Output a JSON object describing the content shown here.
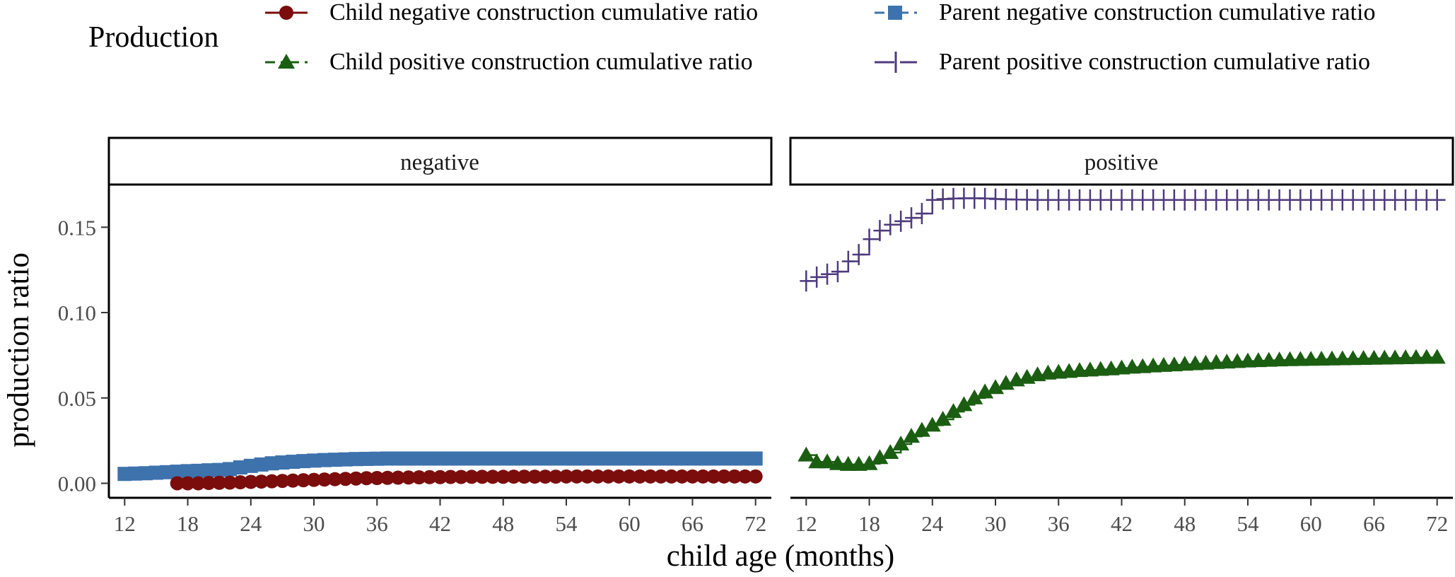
{
  "legend": {
    "title": "Production",
    "items": [
      {
        "label": "Child negative construction cumulative ratio",
        "color": "#7b0d0d",
        "marker": "circle"
      },
      {
        "label": "Child positive construction cumulative ratio",
        "color": "#1b5e12",
        "marker": "triangle"
      },
      {
        "label": "Parent negative construction cumulative ratio",
        "color": "#3d72ad",
        "marker": "square"
      },
      {
        "label": "Parent positive construction cumulative ratio",
        "color": "#4e3a7d",
        "marker": "plus"
      }
    ]
  },
  "axes": {
    "xlabel": "child age (months)",
    "ylabel": "production ratio",
    "xticks": [
      12,
      18,
      24,
      30,
      36,
      42,
      48,
      54,
      60,
      66,
      72
    ],
    "yticks": [
      "0.00",
      "0.05",
      "0.10",
      "0.15"
    ]
  },
  "chart_data": [
    {
      "type": "line",
      "facet": "negative",
      "xlim": [
        10.5,
        73.5
      ],
      "ylim": [
        -0.0085,
        0.175
      ],
      "series": [
        {
          "name": "Parent negative construction cumulative ratio",
          "color": "#3d72ad",
          "marker": "square",
          "x": [
            12,
            13,
            14,
            15,
            16,
            17,
            18,
            19,
            20,
            21,
            22,
            23,
            24,
            25,
            26,
            27,
            28,
            29,
            30,
            31,
            32,
            33,
            34,
            35,
            36,
            37,
            38,
            39,
            40,
            41,
            42,
            43,
            44,
            45,
            46,
            47,
            48,
            49,
            50,
            51,
            52,
            53,
            54,
            55,
            56,
            57,
            58,
            59,
            60,
            61,
            62,
            63,
            64,
            65,
            66,
            67,
            68,
            69,
            70,
            71,
            72
          ],
          "y": [
            0.0055,
            0.0057,
            0.0059,
            0.0062,
            0.0065,
            0.0068,
            0.0071,
            0.0073,
            0.0076,
            0.0078,
            0.0083,
            0.0093,
            0.0102,
            0.011,
            0.0117,
            0.0122,
            0.0126,
            0.013,
            0.0133,
            0.0136,
            0.0138,
            0.014,
            0.0142,
            0.0143,
            0.0144,
            0.0145,
            0.0145,
            0.0145,
            0.0145,
            0.0145,
            0.0145,
            0.0145,
            0.0145,
            0.0145,
            0.0145,
            0.0145,
            0.0145,
            0.0145,
            0.0145,
            0.0145,
            0.0145,
            0.0145,
            0.0145,
            0.0145,
            0.0145,
            0.0145,
            0.0145,
            0.0145,
            0.0145,
            0.0145,
            0.0145,
            0.0145,
            0.0145,
            0.0145,
            0.0145,
            0.0145,
            0.0145,
            0.0145,
            0.0145,
            0.0145,
            0.0145
          ]
        },
        {
          "name": "Child negative construction cumulative ratio",
          "color": "#7b0d0d",
          "marker": "circle",
          "x": [
            17,
            18,
            19,
            20,
            21,
            22,
            23,
            24,
            25,
            26,
            27,
            28,
            29,
            30,
            31,
            32,
            33,
            34,
            35,
            36,
            37,
            38,
            39,
            40,
            41,
            42,
            43,
            44,
            45,
            46,
            47,
            48,
            49,
            50,
            51,
            52,
            53,
            54,
            55,
            56,
            57,
            58,
            59,
            60,
            61,
            62,
            63,
            64,
            65,
            66,
            67,
            68,
            69,
            70,
            71,
            72
          ],
          "y": [
            0.0,
            0.0,
            0.0,
            0.0002,
            0.0003,
            0.0004,
            0.0006,
            0.0008,
            0.001,
            0.0012,
            0.0014,
            0.0016,
            0.0018,
            0.002,
            0.0022,
            0.0024,
            0.0026,
            0.0028,
            0.003,
            0.0031,
            0.0032,
            0.0033,
            0.0034,
            0.0035,
            0.0036,
            0.0036,
            0.0037,
            0.0037,
            0.0038,
            0.0038,
            0.0038,
            0.0038,
            0.0039,
            0.0039,
            0.0039,
            0.0039,
            0.0039,
            0.004,
            0.004,
            0.004,
            0.004,
            0.004,
            0.004,
            0.004,
            0.004,
            0.004,
            0.004,
            0.004,
            0.004,
            0.004,
            0.004,
            0.004,
            0.004,
            0.004,
            0.004,
            0.004
          ]
        }
      ]
    },
    {
      "type": "line",
      "facet": "positive",
      "xlim": [
        10.5,
        73.5
      ],
      "ylim": [
        -0.0085,
        0.175
      ],
      "series": [
        {
          "name": "Parent positive construction cumulative ratio",
          "color": "#4e3a7d",
          "marker": "plus",
          "x": [
            12,
            13,
            14,
            15,
            16,
            17,
            18,
            19,
            20,
            21,
            22,
            23,
            24,
            25,
            26,
            27,
            28,
            29,
            30,
            31,
            32,
            33,
            34,
            35,
            36,
            37,
            38,
            39,
            40,
            41,
            42,
            43,
            44,
            45,
            46,
            47,
            48,
            49,
            50,
            51,
            52,
            53,
            54,
            55,
            56,
            57,
            58,
            59,
            60,
            61,
            62,
            63,
            64,
            65,
            66,
            67,
            68,
            69,
            70,
            71,
            72
          ],
          "y": [
            0.1185,
            0.1208,
            0.1225,
            0.124,
            0.13,
            0.134,
            0.143,
            0.148,
            0.1515,
            0.1535,
            0.1555,
            0.158,
            0.166,
            0.1665,
            0.1668,
            0.167,
            0.167,
            0.1668,
            0.1665,
            0.1663,
            0.1662,
            0.1661,
            0.166,
            0.166,
            0.166,
            0.166,
            0.166,
            0.166,
            0.166,
            0.166,
            0.166,
            0.166,
            0.166,
            0.166,
            0.166,
            0.166,
            0.166,
            0.166,
            0.166,
            0.166,
            0.166,
            0.166,
            0.166,
            0.166,
            0.166,
            0.166,
            0.166,
            0.166,
            0.166,
            0.166,
            0.166,
            0.166,
            0.166,
            0.166,
            0.166,
            0.166,
            0.166,
            0.166,
            0.166,
            0.166,
            0.166
          ]
        },
        {
          "name": "Child positive construction cumulative ratio",
          "color": "#1b5e12",
          "marker": "triangle",
          "x": [
            12,
            13,
            14,
            15,
            16,
            17,
            18,
            19,
            20,
            21,
            22,
            23,
            24,
            25,
            26,
            27,
            28,
            29,
            30,
            31,
            32,
            33,
            34,
            35,
            36,
            37,
            38,
            39,
            40,
            41,
            42,
            43,
            44,
            45,
            46,
            47,
            48,
            49,
            50,
            51,
            52,
            53,
            54,
            55,
            56,
            57,
            58,
            59,
            60,
            61,
            62,
            63,
            64,
            65,
            66,
            67,
            68,
            69,
            70,
            71,
            72
          ],
          "y": [
            0.0165,
            0.0125,
            0.0125,
            0.0115,
            0.011,
            0.011,
            0.0115,
            0.015,
            0.018,
            0.023,
            0.0275,
            0.031,
            0.034,
            0.0375,
            0.042,
            0.046,
            0.05,
            0.0535,
            0.056,
            0.0585,
            0.0605,
            0.062,
            0.0635,
            0.0645,
            0.065,
            0.0655,
            0.066,
            0.0663,
            0.0667,
            0.067,
            0.0675,
            0.068,
            0.0683,
            0.0687,
            0.069,
            0.0693,
            0.0697,
            0.07,
            0.0703,
            0.0707,
            0.071,
            0.0713,
            0.0716,
            0.0718,
            0.072,
            0.0722,
            0.0724,
            0.0725,
            0.0726,
            0.0727,
            0.0728,
            0.0729,
            0.073,
            0.0731,
            0.0732,
            0.0733,
            0.0734,
            0.0735,
            0.0736,
            0.0737,
            0.0738
          ]
        }
      ]
    }
  ]
}
